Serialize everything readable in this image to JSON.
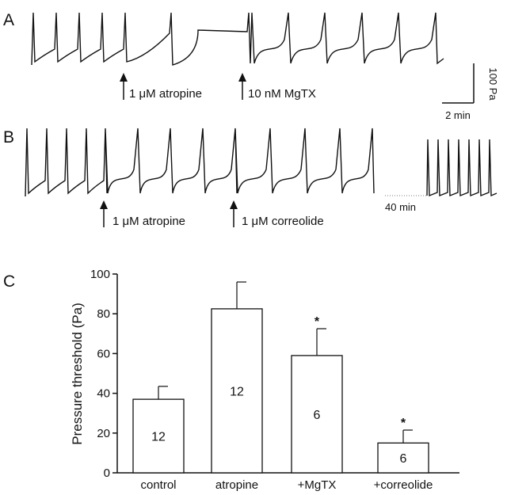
{
  "panels": {
    "a": {
      "letter": "A",
      "annotations": [
        "1 μM atropine",
        "10 nM MgTX"
      ]
    },
    "b": {
      "letter": "B",
      "annotations": [
        "1 μM atropine",
        "1 μM correolide"
      ],
      "inset_time_label": "40 min"
    },
    "c": {
      "letter": "C"
    }
  },
  "scale_bar": {
    "y_label": "100 Pa",
    "x_label": "2 min"
  },
  "chart_data": {
    "type": "bar",
    "title": "",
    "xlabel": "",
    "ylabel": "Pressure threshold (Pa)",
    "ylim": [
      0,
      100
    ],
    "yticks": [
      "0",
      "20",
      "40",
      "60",
      "80",
      "100"
    ],
    "grid": false,
    "categories": [
      "control",
      "atropine",
      "+MgTX",
      "+correolide"
    ],
    "values": [
      37,
      82.5,
      59,
      15
    ],
    "errors": [
      6.5,
      13.5,
      13.5,
      6.5
    ],
    "n_labels": [
      "12",
      "12",
      "6",
      "6"
    ],
    "significance": [
      "",
      "",
      "*",
      "*"
    ],
    "bar_color": "#ffffff",
    "edge_color": "#111111"
  }
}
